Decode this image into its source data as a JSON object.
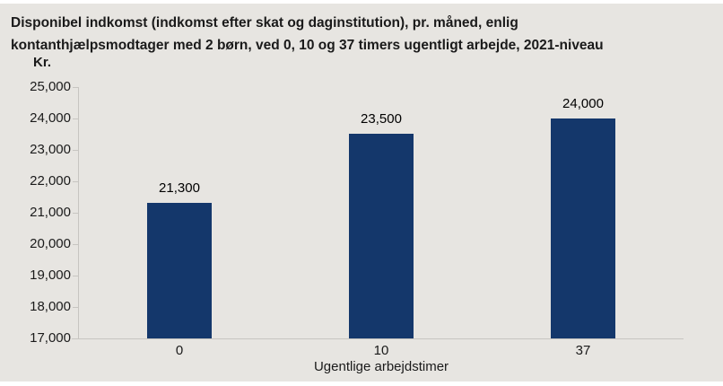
{
  "chart": {
    "title_line1": "Disponibel indkomst (indkomst efter skat og daginstitution), pr. måned, enlig",
    "title_line2": "kontanthjælpsmodtager med 2 børn, ved 0, 10 og 37 timers ugentligt arbejde, 2021-niveau",
    "y_unit_label": "Kr.",
    "x_axis_label": "Ugentlige arbejdstimer"
  },
  "chart_data": {
    "type": "bar",
    "title": "Disponibel indkomst (indkomst efter skat og daginstitution), pr. måned, enlig kontanthjælpsmodtager med 2 børn, ved 0, 10 og 37 timers ugentligt arbejde, 2021-niveau",
    "categories": [
      "0",
      "10",
      "37"
    ],
    "values": [
      21300,
      23500,
      24000
    ],
    "value_labels": [
      "21,300",
      "23,500",
      "24,000"
    ],
    "xlabel": "Ugentlige arbejdstimer",
    "ylabel": "Kr.",
    "ylim": [
      17000,
      25000
    ],
    "ytick_step": 1000,
    "ytick_labels": [
      "17,000",
      "18,000",
      "19,000",
      "20,000",
      "21,000",
      "22,000",
      "23,000",
      "24,000",
      "25,000"
    ],
    "grid": false,
    "legend": null,
    "colors": {
      "bar": "#14376b",
      "background": "#e7e5e1",
      "axis": "#c7c5c1",
      "text": "#1a1a1a"
    }
  }
}
